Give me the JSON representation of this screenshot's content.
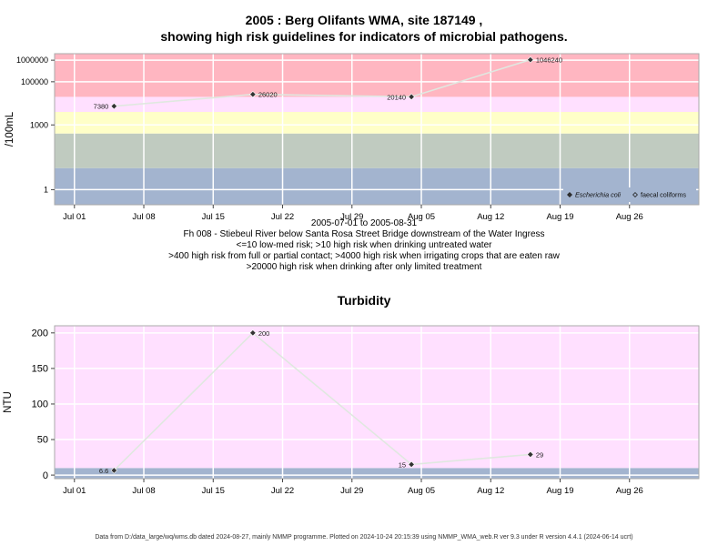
{
  "title_line1": "2005 : Berg Olifants WMA, site 187149 ,",
  "title_line2": "showing high risk guidelines for indicators of microbial pathogens.",
  "caption_lines": [
    "2005-07-01 to 2005-08-31",
    "Fh 008 - Stiebeul River below Santa Rosa Street Bridge downstream of the Water Ingress",
    "<=10 low-med risk; >10 high risk when drinking untreated water",
    ">400 high risk from full or partial contact; >4000 high risk when irrigating crops that are eaten raw",
    ">20000 high risk when drinking after only limited treatment"
  ],
  "footer": "Data from D:/data_large/wq/wms.db dated 2024-08-27, mainly NMMP programme. Plotted on 2024-10-24 20:15:39 using NMMP_WMA_web.R ver 9.3 under R version 4.4.1 (2024-06-14 ucrt)",
  "colors": {
    "band_red": "#ffb6c1",
    "band_pink": "#ffe0ff",
    "band_yellow": "#ffffc8",
    "band_grey": "#c0cbc0",
    "band_blue": "#a3b4cf",
    "line": "#e0e8e0",
    "marker": "#333333",
    "panel_border": "#aaaaaa",
    "grid": "#ffffff"
  },
  "chart_data": [
    {
      "type": "line",
      "ylabel": "/100mL",
      "y_scale": "log",
      "x_ticks": [
        "Jul 01",
        "Jul 08",
        "Jul 15",
        "Jul 22",
        "Jul 29",
        "Aug 05",
        "Aug 12",
        "Aug 19",
        "Aug 26"
      ],
      "x_tick_dates": [
        "2005-07-01",
        "2005-07-08",
        "2005-07-15",
        "2005-07-22",
        "2005-07-29",
        "2005-08-05",
        "2005-08-12",
        "2005-08-19",
        "2005-08-26"
      ],
      "xlim": [
        "2005-06-29",
        "2005-09-02"
      ],
      "y_ticks": [
        "1",
        "1000",
        "100000",
        "1000000"
      ],
      "y_tick_values": [
        1,
        1000,
        100000,
        1000000
      ],
      "ylim": [
        0.2,
        2000000
      ],
      "bands": [
        {
          "from": 0.2,
          "to": 10,
          "color_key": "band_blue"
        },
        {
          "from": 10,
          "to": 400,
          "color_key": "band_grey"
        },
        {
          "from": 400,
          "to": 4000,
          "color_key": "band_yellow"
        },
        {
          "from": 4000,
          "to": 20000,
          "color_key": "band_pink"
        },
        {
          "from": 20000,
          "to": 2000000,
          "color_key": "band_red"
        }
      ],
      "series": [
        {
          "name": "Escherichia coli",
          "marker": "filled-diamond",
          "x": [
            "2005-07-05",
            "2005-07-19",
            "2005-08-04",
            "2005-08-16"
          ],
          "y": [
            7380,
            26020,
            20140,
            1046240
          ],
          "labels": [
            "7380",
            "26020",
            "20140",
            "1046240"
          ],
          "label_side": [
            "left",
            "right",
            "left",
            "right"
          ]
        }
      ],
      "legend": {
        "position": "bottom-right",
        "entries": [
          {
            "name": "Escherichia coli",
            "italic": true,
            "marker": "filled-diamond"
          },
          {
            "name": "faecal coliforms",
            "italic": false,
            "marker": "open-diamond"
          }
        ]
      }
    },
    {
      "type": "line",
      "title": "Turbidity",
      "ylabel": "NTU",
      "y_scale": "linear",
      "x_ticks": [
        "Jul 01",
        "Jul 08",
        "Jul 15",
        "Jul 22",
        "Jul 29",
        "Aug 05",
        "Aug 12",
        "Aug 19",
        "Aug 26"
      ],
      "x_tick_dates": [
        "2005-07-01",
        "2005-07-08",
        "2005-07-15",
        "2005-07-22",
        "2005-07-29",
        "2005-08-05",
        "2005-08-12",
        "2005-08-19",
        "2005-08-26"
      ],
      "xlim": [
        "2005-06-29",
        "2005-09-02"
      ],
      "y_ticks": [
        "0",
        "50",
        "100",
        "150",
        "200"
      ],
      "y_tick_values": [
        0,
        50,
        100,
        150,
        200
      ],
      "ylim": [
        -5,
        210
      ],
      "bands": [
        {
          "from": -5,
          "to": 10,
          "color_key": "band_blue"
        },
        {
          "from": 10,
          "to": 210,
          "color_key": "band_pink"
        }
      ],
      "series": [
        {
          "x": [
            "2005-07-05",
            "2005-07-19",
            "2005-08-04",
            "2005-08-16"
          ],
          "y": [
            6.6,
            200,
            15,
            29
          ],
          "labels": [
            "6.6",
            "200",
            "15",
            "29"
          ],
          "label_side": [
            "left",
            "right",
            "left",
            "right"
          ]
        }
      ]
    }
  ]
}
